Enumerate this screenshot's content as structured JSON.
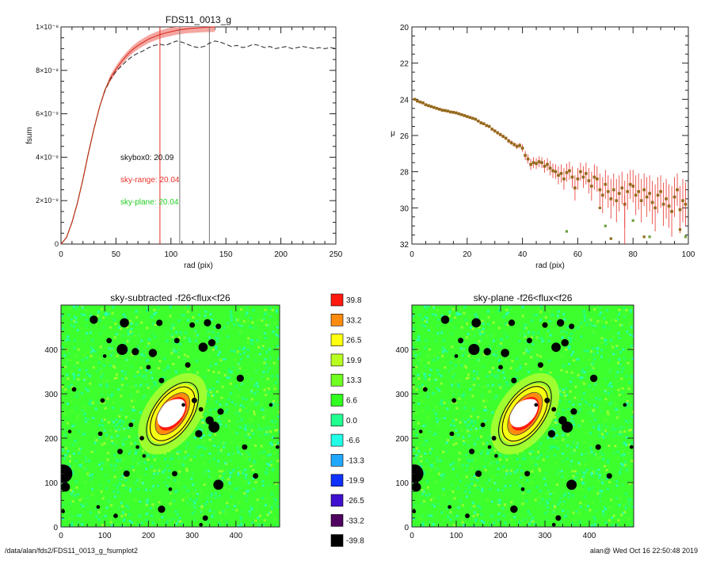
{
  "footer": {
    "left_path": "/data/alan/fds2/FDS11_0013_g_fsumplot2",
    "right_stamp": "alan@  Wed Oct 16 22:50:48 2019"
  },
  "colors": {
    "red": "#e8322a",
    "green": "#22cc22",
    "dark": "#222222"
  },
  "chart_data": [
    {
      "type": "line",
      "title": "FDS11_0013_g",
      "xlabel": "rad (pix)",
      "ylabel": "fsum",
      "xlim": [
        0,
        250
      ],
      "ylim": [
        0,
        1e-08
      ],
      "x_ticks": [
        "0",
        "50",
        "100",
        "150",
        "200",
        "250"
      ],
      "y_ticks": [
        "0",
        "2×10⁻⁹",
        "4×10⁻⁹",
        "6×10⁻⁹",
        "8×10⁻⁹",
        "1×10⁻⁸"
      ],
      "annotations": [
        {
          "text": "skybox0: 20.09",
          "color": "#111111"
        },
        {
          "text": "sky-range: 20.04",
          "color": "#e8322a"
        },
        {
          "text": "sky-plane: 20.04",
          "color": "#22cc22"
        }
      ],
      "vertical_lines": [
        {
          "x": 90,
          "color": "#e8322a"
        },
        {
          "x": 108,
          "color": "#777777"
        },
        {
          "x": 135,
          "color": "#777777"
        }
      ],
      "series": [
        {
          "style": "solid-red",
          "x": [
            0,
            5,
            10,
            15,
            20,
            25,
            30,
            35,
            40,
            45,
            50,
            55,
            60,
            65,
            70,
            75,
            80,
            85,
            90,
            95,
            100,
            105,
            110,
            115,
            120,
            125,
            130,
            135,
            140
          ],
          "y": [
            0,
            3e-10,
            1e-09,
            1.9e-09,
            3e-09,
            4.2e-09,
            5.3e-09,
            6.3e-09,
            7.1e-09,
            7.65e-09,
            8.05e-09,
            8.4e-09,
            8.7e-09,
            8.95e-09,
            9.15e-09,
            9.3e-09,
            9.45e-09,
            9.55e-09,
            9.65e-09,
            9.72e-09,
            9.78e-09,
            9.84e-09,
            9.88e-09,
            9.92e-09,
            9.94e-09,
            9.96e-09,
            9.98e-09,
            9.99e-09,
            1e-08
          ]
        },
        {
          "style": "dashed-black",
          "x": [
            0,
            5,
            10,
            15,
            20,
            25,
            30,
            35,
            40,
            45,
            50,
            55,
            60,
            65,
            70,
            75,
            80,
            85,
            90,
            95,
            100,
            105,
            110,
            115,
            120,
            125,
            130,
            135,
            140,
            145,
            150,
            155,
            160,
            165,
            170,
            175,
            180,
            185,
            190,
            195,
            200,
            205,
            210,
            215,
            220,
            225,
            230,
            235,
            240,
            245,
            250
          ],
          "y": [
            0,
            3e-10,
            1e-09,
            1.9e-09,
            3e-09,
            4.2e-09,
            5.3e-09,
            6.3e-09,
            7.05e-09,
            7.6e-09,
            7.95e-09,
            8.2e-09,
            8.45e-09,
            8.65e-09,
            8.8e-09,
            8.9e-09,
            9.05e-09,
            9.15e-09,
            9.2e-09,
            9.15e-09,
            9.25e-09,
            9.35e-09,
            9.3e-09,
            9.2e-09,
            9.1e-09,
            9.05e-09,
            9.1e-09,
            9.25e-09,
            9.35e-09,
            9.3e-09,
            9.2e-09,
            9.1e-09,
            9.15e-09,
            9.05e-09,
            9.1e-09,
            9.2e-09,
            9.15e-09,
            9.05e-09,
            9.1e-09,
            9e-09,
            9.05e-09,
            9.1e-09,
            9e-09,
            9.05e-09,
            9.1e-09,
            9.05e-09,
            9e-09,
            9.05e-09,
            9e-09,
            9.05e-09,
            9e-09
          ]
        }
      ]
    },
    {
      "type": "scatter",
      "xlabel": "rad (pix)",
      "ylabel": "μ",
      "xlim": [
        0,
        100
      ],
      "ylim": [
        32,
        20
      ],
      "x_ticks": [
        "0",
        "20",
        "40",
        "60",
        "80",
        "100"
      ],
      "y_ticks": [
        "20",
        "22",
        "24",
        "26",
        "28",
        "30",
        "32"
      ],
      "x": [
        1,
        2,
        3,
        4,
        5,
        6,
        7,
        8,
        9,
        10,
        11,
        12,
        13,
        14,
        15,
        16,
        17,
        18,
        19,
        20,
        21,
        22,
        23,
        24,
        25,
        26,
        27,
        28,
        29,
        30,
        31,
        32,
        33,
        34,
        35,
        36,
        37,
        38,
        39,
        40,
        41,
        42,
        43,
        44,
        45,
        46,
        47,
        48,
        49,
        50,
        51,
        52,
        53,
        54,
        55,
        56,
        57,
        58,
        59,
        60,
        61,
        62,
        63,
        64,
        65,
        66,
        67,
        68,
        69,
        70,
        71,
        72,
        73,
        74,
        75,
        76,
        77,
        78,
        79,
        80,
        81,
        82,
        83,
        84,
        85,
        86,
        87,
        88,
        89,
        90,
        91,
        92,
        93,
        94,
        95,
        96,
        97,
        98,
        99
      ],
      "y": [
        24.0,
        24.1,
        24.15,
        24.2,
        24.3,
        24.35,
        24.4,
        24.45,
        24.5,
        24.55,
        24.6,
        24.62,
        24.65,
        24.7,
        24.72,
        24.75,
        24.8,
        24.85,
        24.9,
        24.95,
        25.0,
        25.05,
        25.1,
        25.2,
        25.3,
        25.35,
        25.45,
        25.5,
        25.65,
        25.75,
        25.85,
        25.95,
        26.05,
        26.15,
        26.3,
        26.4,
        26.5,
        26.6,
        26.55,
        26.7,
        27.1,
        27.3,
        27.6,
        27.5,
        27.55,
        27.45,
        27.5,
        27.7,
        27.6,
        27.8,
        27.95,
        28.0,
        28.2,
        28.1,
        28.4,
        28.05,
        27.95,
        28.3,
        28.9,
        28.4,
        28.0,
        28.3,
        28.1,
        28.5,
        28.8,
        28.3,
        28.4,
        29.0,
        29.3,
        28.7,
        29.1,
        29.5,
        29.0,
        29.6,
        29.2,
        28.9,
        29.8,
        29.1,
        28.7,
        28.8,
        29.3,
        29.1,
        29.6,
        29.0,
        29.4,
        29.2,
        29.7,
        30.0,
        29.3,
        29.1,
        29.8,
        29.5,
        29.9,
        30.2,
        29.4,
        29.0,
        30.1,
        29.6,
        29.8
      ],
      "y_err": [
        0.05,
        0.05,
        0.05,
        0.05,
        0.05,
        0.05,
        0.05,
        0.05,
        0.05,
        0.05,
        0.05,
        0.05,
        0.05,
        0.05,
        0.05,
        0.05,
        0.05,
        0.05,
        0.05,
        0.05,
        0.05,
        0.05,
        0.05,
        0.05,
        0.05,
        0.05,
        0.05,
        0.05,
        0.05,
        0.1,
        0.1,
        0.1,
        0.1,
        0.1,
        0.12,
        0.12,
        0.12,
        0.15,
        0.15,
        0.2,
        0.25,
        0.25,
        0.3,
        0.3,
        0.3,
        0.3,
        0.3,
        0.35,
        0.35,
        0.4,
        0.4,
        0.4,
        0.5,
        0.5,
        0.6,
        0.5,
        0.5,
        0.6,
        0.7,
        0.6,
        0.5,
        0.6,
        0.6,
        0.7,
        0.8,
        0.7,
        0.7,
        0.9,
        1.0,
        0.8,
        0.9,
        1.1,
        0.9,
        1.2,
        1.0,
        0.9,
        1.3,
        1.0,
        0.8,
        0.9,
        1.1,
        1.0,
        1.2,
        0.9,
        1.1,
        1.0,
        1.2,
        1.3,
        1.0,
        0.9,
        1.2,
        1.1,
        1.2,
        1.4,
        1.1,
        0.9,
        1.3,
        1.2,
        1.2
      ],
      "outliers_x": [
        56,
        68,
        70,
        72,
        80,
        84,
        86,
        97,
        99
      ],
      "outliers_y": [
        31.3,
        30.0,
        31.0,
        31.7,
        30.7,
        31.6,
        31.6,
        31.2,
        31.6
      ]
    },
    {
      "type": "heatmap",
      "title": "sky-subtracted -f26<flux<f26",
      "xlim": [
        0,
        500
      ],
      "ylim": [
        0,
        500
      ],
      "x_ticks": [
        "0",
        "100",
        "200",
        "300",
        "400"
      ],
      "y_ticks": [
        "0",
        "100",
        "200",
        "300",
        "400"
      ]
    },
    {
      "type": "heatmap",
      "title": "sky-plane -f26<flux<f26",
      "xlim": [
        0,
        500
      ],
      "ylim": [
        0,
        500
      ],
      "x_ticks": [
        "0",
        "100",
        "200",
        "300",
        "400"
      ],
      "y_ticks": [
        "0",
        "100",
        "200",
        "300",
        "400"
      ]
    }
  ],
  "colorbar": {
    "labels": [
      "39.8",
      "33.2",
      "26.5",
      "19.9",
      "13.3",
      "6.6",
      "0.0",
      "-6.6",
      "-13.3",
      "-19.9",
      "-26.5",
      "-33.2",
      "-39.8"
    ],
    "colors": [
      "#ff1a10",
      "#ff8a10",
      "#ffff10",
      "#b8ff20",
      "#70ff20",
      "#30ff20",
      "#20ff90",
      "#20ffe8",
      "#20a8ff",
      "#1030ff",
      "#4010d0",
      "#500060",
      "#000000"
    ]
  },
  "image_model": {
    "galaxy_center": [
      255,
      255
    ],
    "ellipse_tilt_deg": 55,
    "ellipses": [
      {
        "a": 165,
        "b": 80
      },
      {
        "a": 140,
        "b": 70
      },
      {
        "a": 110,
        "b": 52
      }
    ],
    "masked_stars": [
      [
        75,
        467,
        9
      ],
      [
        145,
        460,
        10
      ],
      [
        225,
        460,
        7
      ],
      [
        300,
        455,
        6
      ],
      [
        335,
        460,
        8
      ],
      [
        360,
        452,
        6
      ],
      [
        110,
        420,
        6
      ],
      [
        140,
        400,
        12
      ],
      [
        170,
        395,
        8
      ],
      [
        210,
        392,
        9
      ],
      [
        265,
        420,
        6
      ],
      [
        325,
        405,
        10
      ],
      [
        345,
        415,
        8
      ],
      [
        100,
        385,
        4
      ],
      [
        290,
        365,
        6
      ],
      [
        200,
        360,
        5
      ],
      [
        230,
        330,
        6
      ],
      [
        410,
        335,
        8
      ],
      [
        30,
        310,
        5
      ],
      [
        95,
        285,
        5
      ],
      [
        305,
        285,
        6
      ],
      [
        280,
        275,
        4
      ],
      [
        320,
        265,
        5
      ],
      [
        365,
        260,
        7
      ],
      [
        340,
        240,
        9
      ],
      [
        350,
        225,
        12
      ],
      [
        315,
        210,
        8
      ],
      [
        160,
        230,
        5
      ],
      [
        20,
        215,
        4
      ],
      [
        90,
        210,
        5
      ],
      [
        185,
        200,
        5
      ],
      [
        175,
        180,
        4
      ],
      [
        135,
        170,
        6
      ],
      [
        150,
        120,
        7
      ],
      [
        260,
        120,
        6
      ],
      [
        190,
        160,
        4
      ],
      [
        5,
        120,
        20
      ],
      [
        10,
        90,
        10
      ],
      [
        230,
        40,
        8
      ],
      [
        360,
        95,
        11
      ],
      [
        445,
        115,
        6
      ],
      [
        420,
        180,
        6
      ],
      [
        480,
        275,
        4
      ],
      [
        495,
        180,
        4
      ],
      [
        85,
        45,
        4
      ],
      [
        125,
        25,
        5
      ],
      [
        330,
        20,
        6
      ],
      [
        320,
        5,
        4
      ],
      [
        5,
        35,
        4
      ],
      [
        250,
        85,
        4
      ]
    ]
  }
}
